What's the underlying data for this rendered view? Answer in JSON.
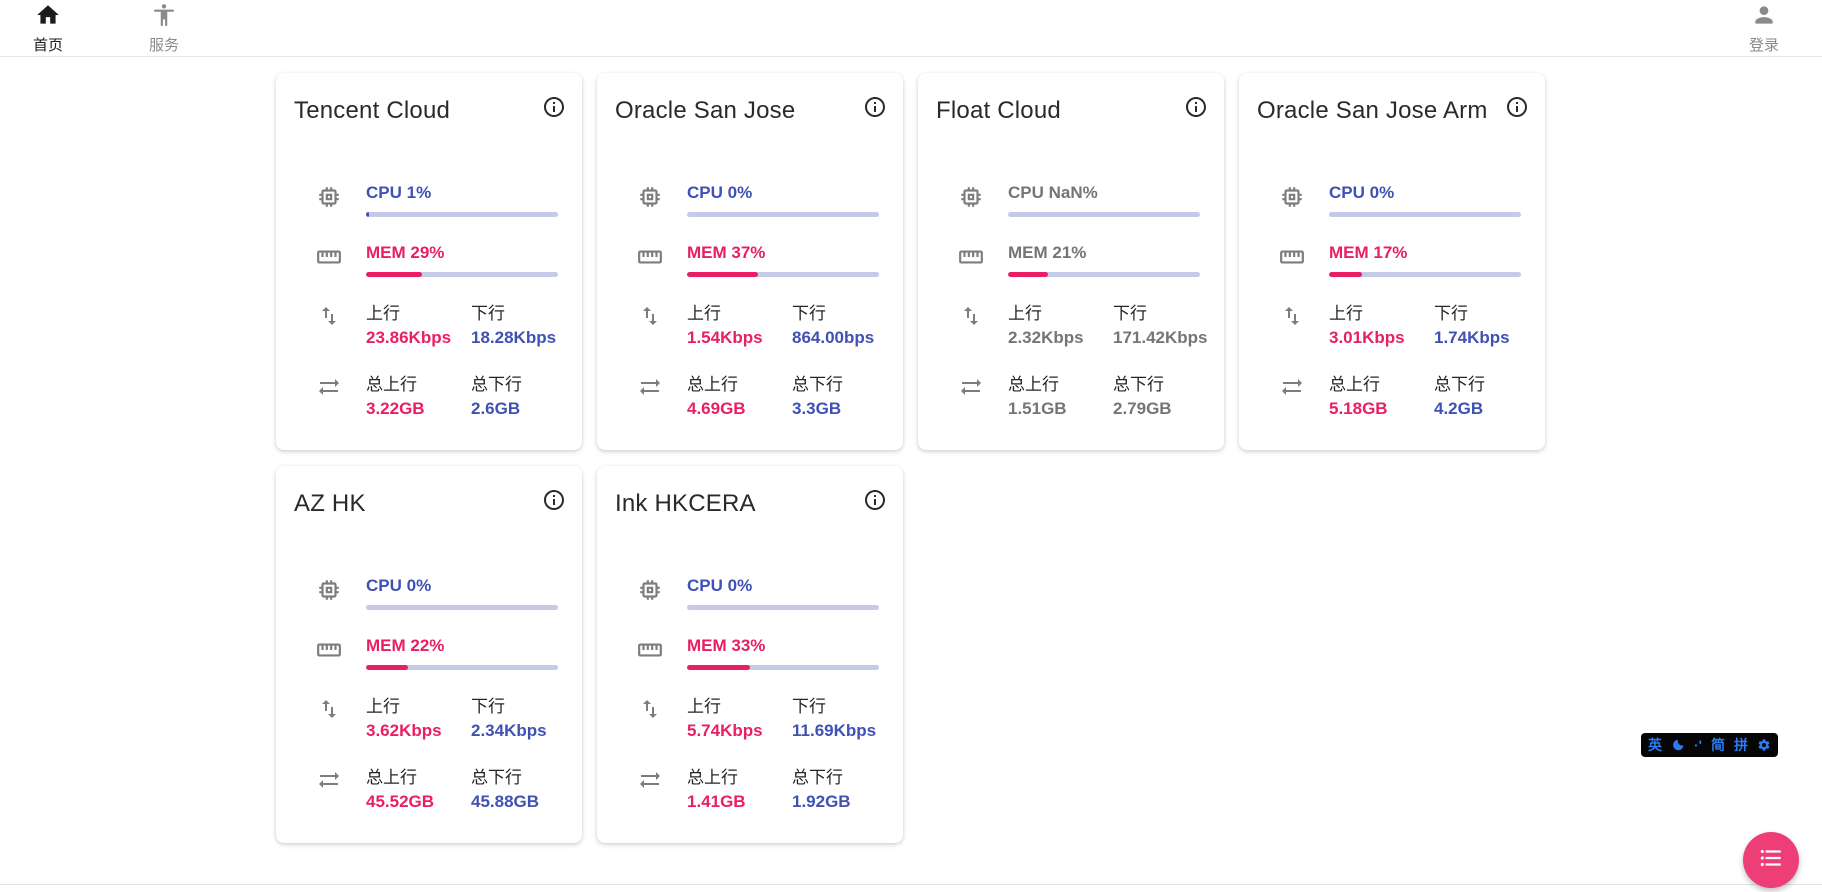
{
  "nav": {
    "home": "首页",
    "services": "服务",
    "login": "登录"
  },
  "labels": {
    "upload": "上行",
    "download": "下行",
    "total_upload": "总上行",
    "total_download": "总下行"
  },
  "colors": {
    "accent_pink": "#e91e63",
    "accent_indigo": "#3f51b5",
    "bar_track": "#c5cae9",
    "muted_gray": "#757575",
    "fab_pink": "#ee3e78",
    "ime_blue": "#2b7bf3"
  },
  "cards": [
    {
      "name": "Tencent Cloud",
      "cpu_label": "CPU 1%",
      "cpu_percent": 1,
      "mem_label": "MEM 29%",
      "mem_percent": 29,
      "upload_speed": "23.86Kbps",
      "download_speed": "18.28Kbps",
      "total_upload": "3.22GB",
      "total_download": "2.6GB",
      "muted": false
    },
    {
      "name": "Oracle San Jose",
      "cpu_label": "CPU 0%",
      "cpu_percent": 0,
      "mem_label": "MEM 37%",
      "mem_percent": 37,
      "upload_speed": "1.54Kbps",
      "download_speed": "864.00bps",
      "total_upload": "4.69GB",
      "total_download": "3.3GB",
      "muted": false
    },
    {
      "name": "Float Cloud",
      "cpu_label": "CPU NaN%",
      "cpu_percent": 0,
      "mem_label": "MEM 21%",
      "mem_percent": 21,
      "upload_speed": "2.32Kbps",
      "download_speed": "171.42Kbps",
      "total_upload": "1.51GB",
      "total_download": "2.79GB",
      "muted": true
    },
    {
      "name": "Oracle San Jose Arm",
      "cpu_label": "CPU 0%",
      "cpu_percent": 0,
      "mem_label": "MEM 17%",
      "mem_percent": 17,
      "upload_speed": "3.01Kbps",
      "download_speed": "1.74Kbps",
      "total_upload": "5.18GB",
      "total_download": "4.2GB",
      "muted": false
    },
    {
      "name": "AZ HK",
      "cpu_label": "CPU 0%",
      "cpu_percent": 0,
      "mem_label": "MEM 22%",
      "mem_percent": 22,
      "upload_speed": "3.62Kbps",
      "download_speed": "2.34Kbps",
      "total_upload": "45.52GB",
      "total_download": "45.88GB",
      "muted": false
    },
    {
      "name": "Ink HKCERA",
      "cpu_label": "CPU 0%",
      "cpu_percent": 0,
      "mem_label": "MEM 33%",
      "mem_percent": 33,
      "upload_speed": "5.74Kbps",
      "download_speed": "11.69Kbps",
      "total_upload": "1.41GB",
      "total_download": "1.92GB",
      "muted": false
    }
  ],
  "ime_bar": {
    "english_mode": "英",
    "punctuation_mode": "·'",
    "simplified_mode": "简",
    "pinyin_mode": "拼"
  }
}
